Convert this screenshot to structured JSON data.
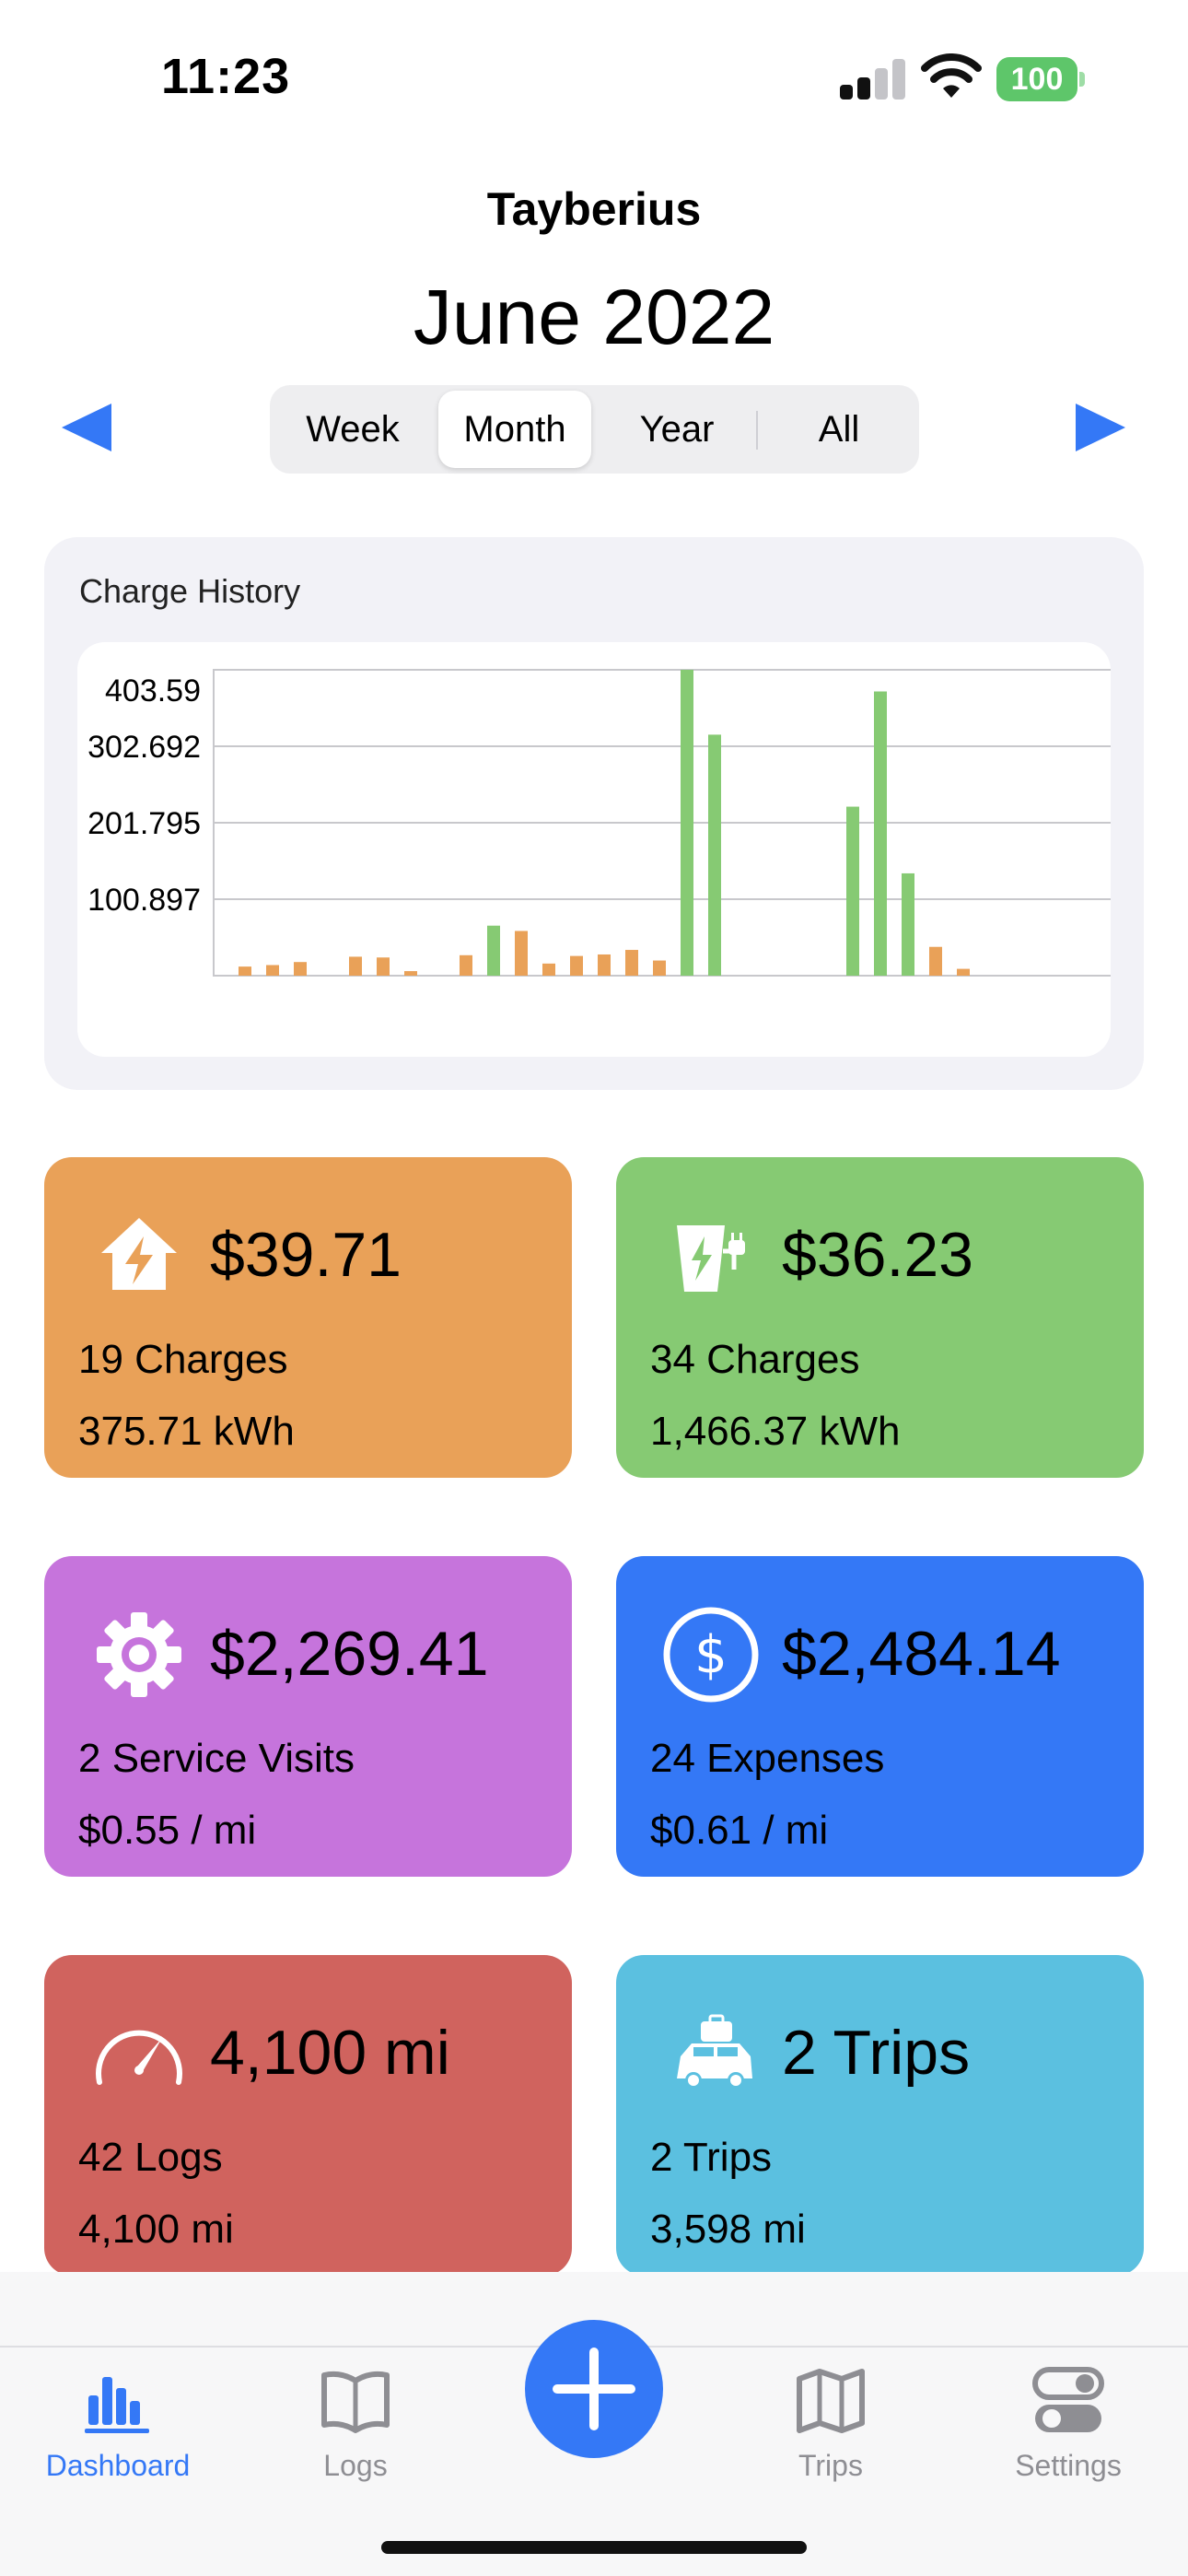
{
  "status_bar": {
    "time": "11:23",
    "battery": "100"
  },
  "header": {
    "vehicle_name": "Tayberius",
    "period_title": "June 2022"
  },
  "segmented": {
    "options": [
      "Week",
      "Month",
      "Year",
      "All"
    ],
    "selected": "Month"
  },
  "chart_card": {
    "title": "Charge History"
  },
  "chart_data": {
    "type": "bar",
    "title": "Charge History",
    "y_ticks": [
      "403.59",
      "302.692",
      "201.795",
      "100.897"
    ],
    "ylim": [
      0,
      403.59
    ],
    "grid": true,
    "colors": {
      "home": "#e9a158",
      "public": "#86ca73"
    },
    "bars": [
      {
        "day": 1,
        "value": 12,
        "type": "home"
      },
      {
        "day": 2,
        "value": 14,
        "type": "home"
      },
      {
        "day": 3,
        "value": 18,
        "type": "home"
      },
      {
        "day": 5,
        "value": 25,
        "type": "home"
      },
      {
        "day": 6,
        "value": 24,
        "type": "home"
      },
      {
        "day": 7,
        "value": 6,
        "type": "home"
      },
      {
        "day": 9,
        "value": 27,
        "type": "home"
      },
      {
        "day": 10,
        "value": 66,
        "type": "public"
      },
      {
        "day": 11,
        "value": 59,
        "type": "home"
      },
      {
        "day": 12,
        "value": 16,
        "type": "home"
      },
      {
        "day": 13,
        "value": 26,
        "type": "home"
      },
      {
        "day": 14,
        "value": 28,
        "type": "home"
      },
      {
        "day": 15,
        "value": 34,
        "type": "home"
      },
      {
        "day": 16,
        "value": 20,
        "type": "home"
      },
      {
        "day": 17,
        "value": 403.59,
        "type": "public"
      },
      {
        "day": 18,
        "value": 318,
        "type": "public"
      },
      {
        "day": 23,
        "value": 223,
        "type": "public"
      },
      {
        "day": 24,
        "value": 375,
        "type": "public"
      },
      {
        "day": 25,
        "value": 135,
        "type": "public"
      },
      {
        "day": 26,
        "value": 38,
        "type": "home"
      },
      {
        "day": 27,
        "value": 9,
        "type": "home"
      }
    ],
    "x_days": 31
  },
  "cards": {
    "home": {
      "icon": "home-charging-icon",
      "amount": "$39.71",
      "line1": "19 Charges",
      "line2": "375.71 kWh",
      "color": "#e9a158"
    },
    "public": {
      "icon": "ev-charger-icon",
      "amount": "$36.23",
      "line1": "34 Charges",
      "line2": "1,466.37 kWh",
      "color": "#86ca73"
    },
    "service": {
      "icon": "gear-icon",
      "amount": "$2,269.41",
      "line1": "2 Service Visits",
      "line2": "$0.55 / mi",
      "color": "#c674dc"
    },
    "expenses": {
      "icon": "dollar-circle-icon",
      "amount": "$2,484.14",
      "line1": "24 Expenses",
      "line2": "$0.61 / mi",
      "color": "#3478f6"
    },
    "logs": {
      "icon": "speedometer-icon",
      "amount": "4,100 mi",
      "line1": "42 Logs",
      "line2": "4,100 mi",
      "color": "#d0635e"
    },
    "trips": {
      "icon": "car-luggage-icon",
      "amount": "2 Trips",
      "line1": "2 Trips",
      "line2": "3,598 mi",
      "color": "#5bc0e0"
    }
  },
  "tabbar": {
    "tabs": [
      {
        "label": "Dashboard",
        "icon": "bar-chart-icon",
        "active": true
      },
      {
        "label": "Logs",
        "icon": "book-icon",
        "active": false
      },
      {
        "label": "Trips",
        "icon": "map-icon",
        "active": false
      },
      {
        "label": "Settings",
        "icon": "toggles-icon",
        "active": false
      }
    ],
    "add_icon": "plus-icon",
    "active_color": "#3478f6"
  }
}
